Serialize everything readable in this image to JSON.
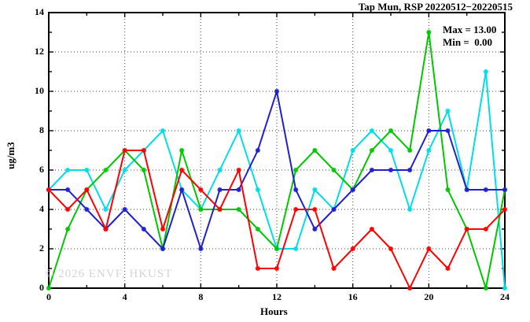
{
  "chart_data": {
    "type": "line",
    "title": "Tap Mun, RSP 20220512−20220515",
    "xlabel": "Hours",
    "ylabel": "ug/m3",
    "xlim": [
      0,
      24
    ],
    "ylim": [
      0,
      14
    ],
    "x_ticks": [
      0,
      4,
      8,
      12,
      16,
      20,
      24
    ],
    "x_minor_step": 2,
    "y_ticks": [
      0,
      2,
      4,
      6,
      8,
      10,
      12,
      14
    ],
    "y_minor_step": 1,
    "grid": {
      "x_at": [
        4,
        8,
        12,
        16,
        20
      ],
      "y_at": [
        2,
        4,
        6,
        8,
        10,
        12
      ]
    },
    "legend": "none",
    "x": [
      0,
      1,
      2,
      3,
      4,
      5,
      6,
      7,
      8,
      9,
      10,
      11,
      12,
      13,
      14,
      15,
      16,
      17,
      18,
      19,
      20,
      21,
      22,
      23,
      24
    ],
    "series": [
      {
        "name": "cyan-series",
        "color": "#00dde8",
        "values": [
          5,
          6,
          6,
          4,
          6,
          7,
          8,
          5,
          4,
          6,
          8,
          5,
          2,
          2,
          5,
          4,
          7,
          8,
          7,
          4,
          7,
          9,
          5,
          11,
          0
        ]
      },
      {
        "name": "green-series",
        "color": "#00c800",
        "values": [
          0,
          3,
          5,
          6,
          7,
          6,
          2,
          7,
          4,
          4,
          4,
          3,
          2,
          6,
          7,
          6,
          5,
          7,
          8,
          7,
          13,
          5,
          3,
          0,
          5
        ]
      },
      {
        "name": "blue-series",
        "color": "#2020d0",
        "values": [
          5,
          5,
          4,
          3,
          4,
          3,
          2,
          5,
          2,
          5,
          5,
          7,
          10,
          5,
          3,
          4,
          5,
          6,
          6,
          6,
          8,
          8,
          5,
          5,
          5
        ]
      },
      {
        "name": "red-series",
        "color": "#ff0000",
        "values": [
          5,
          4,
          5,
          3,
          7,
          7,
          3,
          6,
          5,
          4,
          6,
          1,
          1,
          4,
          4,
          1,
          2,
          3,
          2,
          0,
          2,
          1,
          3,
          3,
          4
        ]
      }
    ],
    "annotations": {
      "max_label": "Max = 13.00",
      "min_label": "Min =  0.00"
    },
    "watermark": "© 2026 ENVF, HKUST",
    "axis_color": "#000000",
    "grid_color": "#444444"
  }
}
